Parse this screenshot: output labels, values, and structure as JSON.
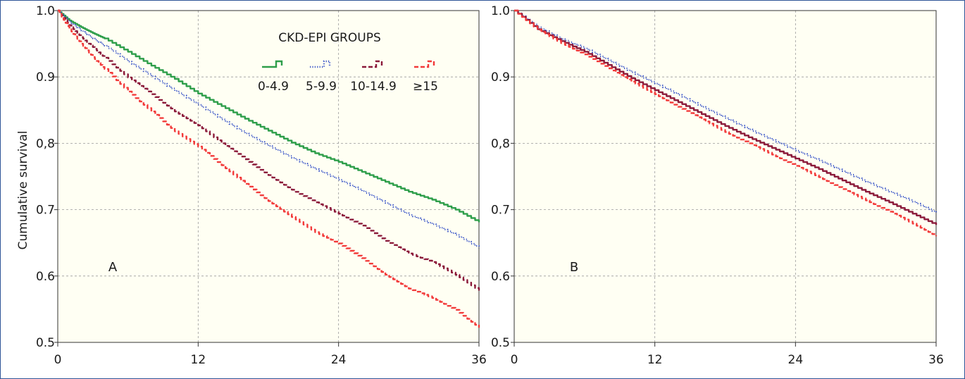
{
  "chart_data": [
    {
      "type": "line",
      "panel_label": "A",
      "ylabel": "Cumulative survival",
      "xlim": [
        0,
        36
      ],
      "ylim": [
        0.5,
        1.0
      ],
      "x_ticks": [
        0,
        12,
        24,
        36
      ],
      "x_tick_labels": [
        "0",
        "12",
        "24",
        "36"
      ],
      "y_ticks": [
        0.5,
        0.6,
        0.7,
        0.8,
        0.9,
        1.0
      ],
      "y_tick_labels": [
        "0.5",
        "0.6",
        "0.7",
        "0,8",
        "0.9",
        "1.0"
      ],
      "grid": true,
      "legend": {
        "title": "CKD-EPI GROUPS",
        "placement": "top-right",
        "entries": [
          "0-4.9",
          "5-9.9",
          "10-14.9",
          "≥15"
        ]
      },
      "series": [
        {
          "name": "0-4.9",
          "color": "#2e9e4a",
          "style": "solid",
          "x": [
            0,
            1,
            2,
            3,
            4,
            6,
            8,
            10,
            12,
            14,
            16,
            18,
            20,
            22,
            24,
            26,
            28,
            30,
            32,
            34,
            36
          ],
          "y": [
            1.0,
            0.985,
            0.975,
            0.966,
            0.958,
            0.938,
            0.917,
            0.897,
            0.875,
            0.856,
            0.837,
            0.819,
            0.801,
            0.785,
            0.772,
            0.757,
            0.742,
            0.727,
            0.715,
            0.7,
            0.681
          ]
        },
        {
          "name": "5-9.9",
          "color": "#3a55c8",
          "style": "dotted",
          "x": [
            0,
            1,
            2,
            3,
            4,
            6,
            8,
            10,
            12,
            14,
            16,
            18,
            20,
            22,
            24,
            26,
            28,
            30,
            32,
            34,
            36
          ],
          "y": [
            1.0,
            0.983,
            0.97,
            0.958,
            0.947,
            0.923,
            0.901,
            0.879,
            0.858,
            0.836,
            0.815,
            0.796,
            0.778,
            0.761,
            0.745,
            0.728,
            0.71,
            0.692,
            0.678,
            0.662,
            0.642
          ]
        },
        {
          "name": "10-14.9",
          "color": "#8b1a3a",
          "style": "dashed",
          "x": [
            0,
            1,
            2,
            3,
            4,
            6,
            8,
            10,
            12,
            14,
            16,
            18,
            20,
            22,
            24,
            26,
            28,
            30,
            32,
            34,
            36
          ],
          "y": [
            1.0,
            0.978,
            0.96,
            0.945,
            0.929,
            0.899,
            0.874,
            0.848,
            0.827,
            0.8,
            0.776,
            0.752,
            0.73,
            0.711,
            0.694,
            0.676,
            0.653,
            0.634,
            0.621,
            0.602,
            0.578
          ]
        },
        {
          "name": "≥15",
          "color": "#f23a3a",
          "style": "dashed",
          "x": [
            0,
            1,
            2,
            3,
            4,
            6,
            8,
            10,
            12,
            14,
            16,
            18,
            20,
            22,
            24,
            26,
            28,
            30,
            32,
            34,
            36
          ],
          "y": [
            1.0,
            0.972,
            0.95,
            0.93,
            0.912,
            0.878,
            0.848,
            0.818,
            0.795,
            0.767,
            0.739,
            0.713,
            0.689,
            0.666,
            0.649,
            0.627,
            0.602,
            0.581,
            0.567,
            0.549,
            0.522
          ]
        }
      ]
    },
    {
      "type": "line",
      "panel_label": "B",
      "xlim": [
        0,
        36
      ],
      "ylim": [
        0.5,
        1.0
      ],
      "x_ticks": [
        0,
        12,
        24,
        36
      ],
      "x_tick_labels": [
        "0",
        "12",
        "24",
        "36"
      ],
      "y_ticks": [
        0.5,
        0.6,
        0.7,
        0.8,
        0.9,
        1.0
      ],
      "y_tick_labels": [
        "0.5",
        "0.6",
        "0.7",
        "0,8",
        "0.9",
        "1.0"
      ],
      "grid": true,
      "series": [
        {
          "color": "#3a55c8",
          "style": "dotted",
          "x": [
            0,
            2,
            4,
            6,
            8,
            10,
            12,
            14,
            16,
            18,
            20,
            22,
            24,
            26,
            28,
            30,
            32,
            34,
            36
          ],
          "y": [
            1.0,
            0.975,
            0.957,
            0.943,
            0.925,
            0.907,
            0.89,
            0.873,
            0.855,
            0.838,
            0.821,
            0.805,
            0.789,
            0.774,
            0.758,
            0.742,
            0.727,
            0.712,
            0.695
          ]
        },
        {
          "color": "#8b1a3a",
          "style": "solid",
          "x": [
            0,
            2,
            4,
            6,
            8,
            10,
            12,
            14,
            16,
            18,
            20,
            22,
            24,
            26,
            28,
            30,
            32,
            34,
            36
          ],
          "y": [
            1.0,
            0.972,
            0.954,
            0.938,
            0.918,
            0.898,
            0.88,
            0.862,
            0.844,
            0.826,
            0.809,
            0.793,
            0.777,
            0.761,
            0.744,
            0.727,
            0.711,
            0.694,
            0.677
          ]
        },
        {
          "color": "#f23a3a",
          "style": "dashed",
          "x": [
            0,
            2,
            4,
            6,
            8,
            10,
            12,
            14,
            16,
            18,
            20,
            22,
            24,
            26,
            28,
            30,
            32,
            34,
            36
          ],
          "y": [
            1.0,
            0.971,
            0.951,
            0.934,
            0.913,
            0.893,
            0.874,
            0.855,
            0.836,
            0.817,
            0.8,
            0.783,
            0.766,
            0.749,
            0.731,
            0.714,
            0.697,
            0.679,
            0.66
          ]
        }
      ]
    }
  ]
}
